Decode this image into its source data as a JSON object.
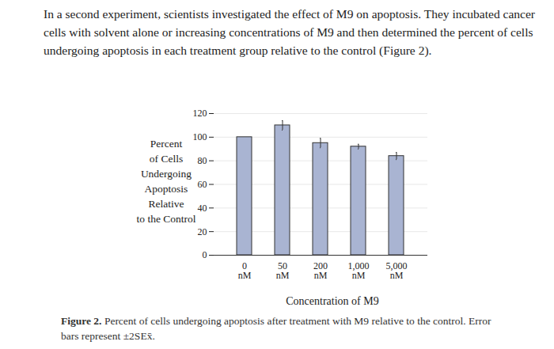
{
  "chart_data": {
    "type": "bar",
    "intro": "In a second experiment, scientists investigated the effect of M9 on apoptosis. They incubated cancer cells with solvent alone or increasing concentrations of M9 and then determined the percent of cells undergoing apoptosis in each treatment group relative to the control (Figure 2).",
    "y_label": "Percent\nof Cells\nUndergoing\nApoptosis\nRelative\nto the Control",
    "x_label": "Concentration of M9",
    "caption": "Figure 2. Percent of cells undergoing apoptosis after treatment with M9 relative to the control. Error bars represent ±2SEx̄.",
    "categories": [
      "0\nnM",
      "50\nnM",
      "200\nnM",
      "1,000\nnM",
      "5,000\nnM"
    ],
    "values": [
      100,
      110,
      95,
      92,
      84
    ],
    "errors": [
      null,
      4,
      4,
      2,
      3
    ],
    "color": "#a9b4d2",
    "ylim": [
      0,
      120
    ],
    "yticks": [
      0,
      20,
      40,
      60,
      80,
      100,
      120
    ],
    "grid": true
  }
}
